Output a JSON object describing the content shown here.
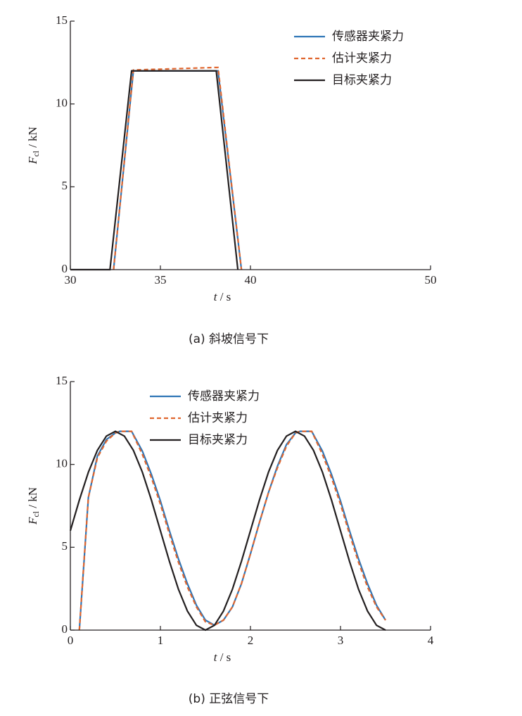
{
  "chart_data": [
    {
      "type": "line",
      "caption": "(a)  斜坡信号下",
      "xlabel_symbol": "t",
      "xlabel_unit": " / s",
      "ylabel_symbol": "F",
      "ylabel_subscript": "cl",
      "ylabel_unit": " / kN",
      "xlim": [
        30,
        50
      ],
      "ylim": [
        0,
        15
      ],
      "xticks": [
        30,
        35,
        40,
        50
      ],
      "yticks": [
        0,
        5,
        10,
        15
      ],
      "legend": "upper right",
      "series": [
        {
          "name": "传感器夹紧力",
          "color": "#2e75b6",
          "dash": "solid",
          "x": [
            32.4,
            33.5,
            38.2,
            39.5
          ],
          "values": [
            0,
            12,
            12,
            0
          ]
        },
        {
          "name": "估计夹紧力",
          "color": "#e0662f",
          "dash": "dashed",
          "x": [
            32.4,
            33.5,
            38.0,
            38.2,
            39.5
          ],
          "values": [
            0,
            12.05,
            12.2,
            12.2,
            0
          ]
        },
        {
          "name": "目标夹紧力",
          "color": "#231f20",
          "dash": "solid",
          "x": [
            30,
            32.2,
            33.4,
            38.1,
            39.3
          ],
          "values": [
            0,
            0,
            12,
            12,
            0
          ]
        }
      ]
    },
    {
      "type": "line",
      "caption": "(b)  正弦信号下",
      "xlabel_symbol": "t",
      "xlabel_unit": " / s",
      "ylabel_symbol": "F",
      "ylabel_subscript": "cl",
      "ylabel_unit": " / kN",
      "xlim": [
        0,
        4
      ],
      "ylim": [
        0,
        15
      ],
      "xticks": [
        0,
        1,
        2,
        3,
        4
      ],
      "yticks": [
        0,
        5,
        10,
        15
      ],
      "legend": "upper left",
      "series": [
        {
          "name": "传感器夹紧力",
          "color": "#2e75b6",
          "dash": "solid",
          "x": [
            0.1,
            0.15,
            0.2,
            0.3,
            0.4,
            0.5,
            0.55,
            0.68,
            0.8,
            0.9,
            1.0,
            1.1,
            1.2,
            1.3,
            1.4,
            1.5,
            1.6,
            1.7,
            1.8,
            1.9,
            2.0,
            2.1,
            2.2,
            2.3,
            2.4,
            2.5,
            2.55,
            2.68,
            2.8,
            2.9,
            3.0,
            3.1,
            3.2,
            3.3,
            3.4,
            3.5
          ],
          "values": [
            0,
            4,
            8,
            10.5,
            11.5,
            11.9,
            12,
            12,
            10.8,
            9.4,
            7.8,
            6,
            4.3,
            2.8,
            1.5,
            0.6,
            0.3,
            0.6,
            1.4,
            2.8,
            4.6,
            6.5,
            8.3,
            9.9,
            11.2,
            11.9,
            12,
            12,
            10.8,
            9.4,
            7.8,
            6,
            4.3,
            2.8,
            1.5,
            0.6
          ]
        },
        {
          "name": "估计夹紧力",
          "color": "#e0662f",
          "dash": "dashed",
          "x": [
            0.1,
            0.15,
            0.2,
            0.3,
            0.4,
            0.5,
            0.55,
            0.68,
            0.8,
            0.9,
            1.0,
            1.1,
            1.2,
            1.3,
            1.4,
            1.5,
            1.6,
            1.7,
            1.8,
            1.9,
            2.0,
            2.1,
            2.2,
            2.3,
            2.4,
            2.5,
            2.55,
            2.68,
            2.8,
            2.9,
            3.0,
            3.1,
            3.2,
            3.3,
            3.4,
            3.5
          ],
          "values": [
            0,
            4,
            8,
            10.4,
            11.4,
            11.9,
            12,
            12,
            10.6,
            9.2,
            7.6,
            5.8,
            4.1,
            2.6,
            1.4,
            0.5,
            0.3,
            0.6,
            1.4,
            2.8,
            4.6,
            6.5,
            8.3,
            9.8,
            11.1,
            11.9,
            12,
            12,
            10.6,
            9.2,
            7.6,
            5.8,
            4.1,
            2.6,
            1.4,
            0.6
          ]
        },
        {
          "name": "目标夹紧力",
          "color": "#231f20",
          "dash": "solid",
          "x": [
            0,
            0.1,
            0.2,
            0.3,
            0.4,
            0.5,
            0.6,
            0.7,
            0.8,
            0.9,
            1.0,
            1.1,
            1.2,
            1.3,
            1.4,
            1.5,
            1.6,
            1.7,
            1.8,
            1.9,
            2.0,
            2.1,
            2.2,
            2.3,
            2.4,
            2.5,
            2.6,
            2.7,
            2.8,
            2.9,
            3.0,
            3.1,
            3.2,
            3.3,
            3.4,
            3.5
          ],
          "values": [
            6,
            7.85,
            9.53,
            10.85,
            11.71,
            12,
            11.71,
            10.85,
            9.53,
            7.85,
            6,
            4.15,
            2.47,
            1.15,
            0.29,
            0,
            0.29,
            1.15,
            2.47,
            4.15,
            6,
            7.85,
            9.53,
            10.85,
            11.71,
            12,
            11.71,
            10.85,
            9.53,
            7.85,
            6,
            4.15,
            2.47,
            1.15,
            0.29,
            0
          ]
        }
      ]
    }
  ]
}
